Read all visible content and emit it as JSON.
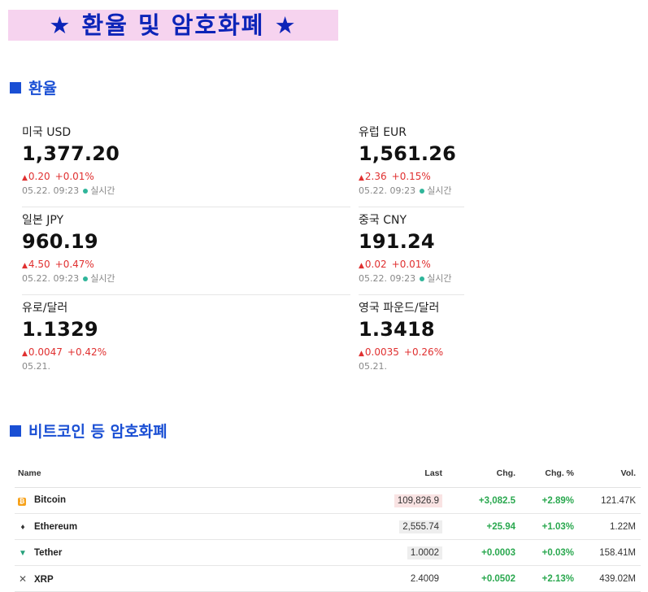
{
  "banner": {
    "title": "★ 환율 및 암호화폐 ★"
  },
  "fx_section": {
    "title": "환율"
  },
  "fx": [
    {
      "name": "미국 USD",
      "value": "1,377.20",
      "change": "0.20",
      "pct": "+0.01%",
      "date": "05.22. 09:23",
      "realtime": "실시간"
    },
    {
      "name": "유럽 EUR",
      "value": "1,561.26",
      "change": "2.36",
      "pct": "+0.15%",
      "date": "05.22. 09:23",
      "realtime": "실시간"
    },
    {
      "name": "일본 JPY",
      "value": "960.19",
      "change": "4.50",
      "pct": "+0.47%",
      "date": "05.22. 09:23",
      "realtime": "실시간"
    },
    {
      "name": "중국 CNY",
      "value": "191.24",
      "change": "0.02",
      "pct": "+0.01%",
      "date": "05.22. 09:23",
      "realtime": "실시간"
    },
    {
      "name": "유로/달러",
      "value": "1.1329",
      "change": "0.0047",
      "pct": "+0.42%",
      "date": "05.21.",
      "realtime": ""
    },
    {
      "name": "영국 파운드/달러",
      "value": "1.3418",
      "change": "0.0035",
      "pct": "+0.26%",
      "date": "05.21.",
      "realtime": ""
    }
  ],
  "crypto_section": {
    "title": "비트코인 등 암호화폐"
  },
  "crypto_table": {
    "headers": {
      "name": "Name",
      "last": "Last",
      "chg": "Chg.",
      "chg_pct": "Chg. %",
      "vol": "Vol."
    },
    "rows": [
      {
        "icon": "bitcoin-icon",
        "name": "Bitcoin",
        "last": "109,826.9",
        "chg": "+3,082.5",
        "chg_pct": "+2.89%",
        "vol": "121.47K",
        "highlight": "#f9e3e3"
      },
      {
        "icon": "ethereum-icon",
        "name": "Ethereum",
        "last": "2,555.74",
        "chg": "+25.94",
        "chg_pct": "+1.03%",
        "vol": "1.22M",
        "highlight": "#eeeeee"
      },
      {
        "icon": "tether-icon",
        "name": "Tether",
        "last": "1.0002",
        "chg": "+0.0003",
        "chg_pct": "+0.03%",
        "vol": "158.41M",
        "highlight": "#eeeeee"
      },
      {
        "icon": "xrp-icon",
        "name": "XRP",
        "last": "2.4009",
        "chg": "+0.0502",
        "chg_pct": "+2.13%",
        "vol": "439.02M",
        "highlight": ""
      }
    ]
  },
  "colors": {
    "banner_bg": "#f6d3ef",
    "banner_text": "#0c24b8",
    "section_blue": "#1a4fd4",
    "up_red": "#e03030",
    "up_green": "#2aa84f",
    "realtime_dot": "#2fb59a"
  }
}
